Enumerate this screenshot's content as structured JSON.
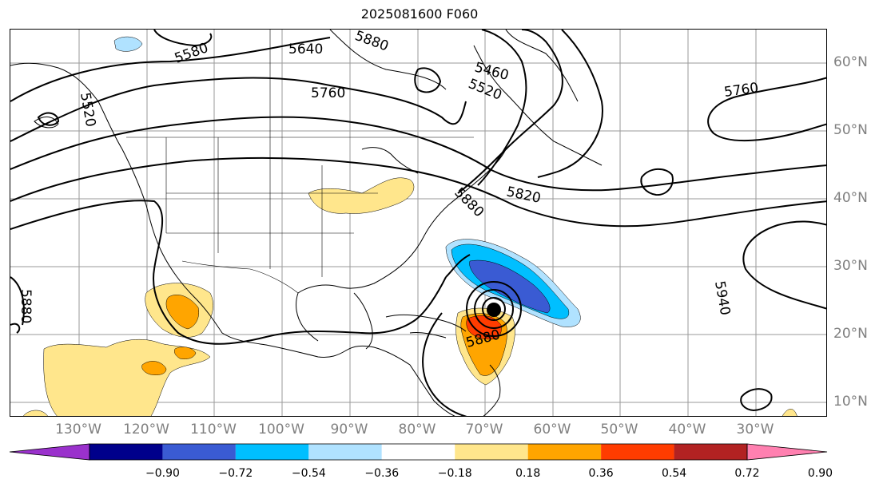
{
  "title": "2025081600 F060",
  "lon_labels": [
    "130°W",
    "120°W",
    "110°W",
    "100°W",
    "90°W",
    "80°W",
    "70°W",
    "60°W",
    "50°W",
    "40°W",
    "30°W"
  ],
  "lat_labels": [
    "60°N",
    "50°N",
    "40°N",
    "30°N",
    "20°N",
    "10°N"
  ],
  "contour_labels": [
    "5640",
    "5760",
    "5580",
    "5460",
    "5520",
    "5760",
    "5820",
    "5880",
    "5880",
    "5940",
    "5880",
    "5880",
    "5520"
  ],
  "colorbar": {
    "ticks": [
      "−0.90",
      "−0.72",
      "−0.54",
      "−0.36",
      "−0.18",
      "0.18",
      "0.36",
      "0.54",
      "0.72",
      "0.90"
    ],
    "colors": [
      "#9a31cc",
      "#00008b",
      "#3a5bd3",
      "#00bfff",
      "#b0e2ff",
      "#ffffff",
      "#ffe68c",
      "#ffa500",
      "#ff3c00",
      "#b22222",
      "#ff80b0"
    ]
  }
}
